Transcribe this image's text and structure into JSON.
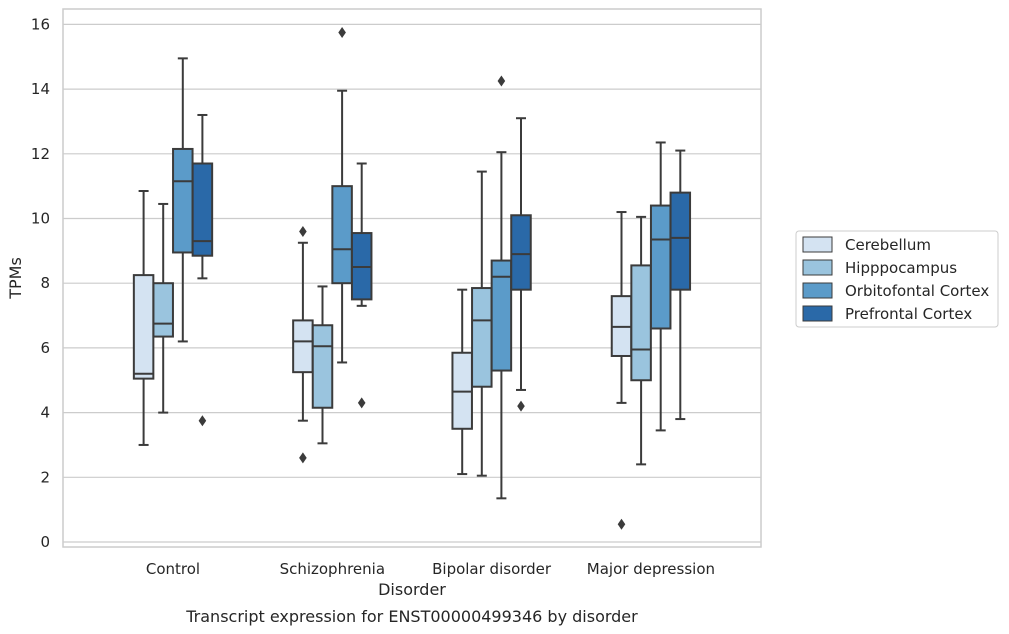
{
  "chart_data": {
    "type": "box",
    "caption": "Transcript expression for ENST00000499346 by disorder",
    "xlabel": "Disorder",
    "ylabel": "TPMs",
    "ylim": [
      -0.2,
      16.5
    ],
    "yticks": [
      0,
      2,
      4,
      6,
      8,
      10,
      12,
      14,
      16
    ],
    "grid": true,
    "legend_position": "right",
    "categories": [
      "Control",
      "Schizophrenia",
      "Bipolar disorder",
      "Major depression"
    ],
    "series": [
      {
        "name": "Cerebellum",
        "color": "#d4e3f2",
        "boxes": [
          {
            "whislo": 3.0,
            "q1": 5.05,
            "med": 5.2,
            "q3": 8.25,
            "whishi": 10.85,
            "fliers": []
          },
          {
            "whislo": 3.75,
            "q1": 5.25,
            "med": 6.2,
            "q3": 6.85,
            "whishi": 9.25,
            "fliers": [
              9.6,
              2.6
            ]
          },
          {
            "whislo": 2.1,
            "q1": 3.5,
            "med": 4.65,
            "q3": 5.85,
            "whishi": 7.8,
            "fliers": []
          },
          {
            "whislo": 4.3,
            "q1": 5.75,
            "med": 6.65,
            "q3": 7.6,
            "whishi": 10.2,
            "fliers": [
              0.55
            ]
          }
        ]
      },
      {
        "name": "Hipppocampus",
        "color": "#9ac4de",
        "boxes": [
          {
            "whislo": 4.0,
            "q1": 6.35,
            "med": 6.75,
            "q3": 8.0,
            "whishi": 10.45,
            "fliers": []
          },
          {
            "whislo": 3.05,
            "q1": 4.15,
            "med": 6.05,
            "q3": 6.7,
            "whishi": 7.9,
            "fliers": []
          },
          {
            "whislo": 2.05,
            "q1": 4.8,
            "med": 6.85,
            "q3": 7.85,
            "whishi": 11.45,
            "fliers": []
          },
          {
            "whislo": 2.4,
            "q1": 5.0,
            "med": 5.95,
            "q3": 8.55,
            "whishi": 10.05,
            "fliers": []
          }
        ]
      },
      {
        "name": "Orbitofontal Cortex",
        "color": "#5b9bc9",
        "boxes": [
          {
            "whislo": 6.2,
            "q1": 8.95,
            "med": 11.15,
            "q3": 12.15,
            "whishi": 14.95,
            "fliers": []
          },
          {
            "whislo": 5.55,
            "q1": 8.0,
            "med": 9.05,
            "q3": 11.0,
            "whishi": 13.95,
            "fliers": [
              15.75
            ]
          },
          {
            "whislo": 1.35,
            "q1": 5.3,
            "med": 8.2,
            "q3": 8.7,
            "whishi": 12.05,
            "fliers": [
              14.25
            ]
          },
          {
            "whislo": 3.45,
            "q1": 6.6,
            "med": 9.35,
            "q3": 10.4,
            "whishi": 12.35,
            "fliers": []
          }
        ]
      },
      {
        "name": "Prefrontal Cortex",
        "color": "#2a69a8",
        "boxes": [
          {
            "whislo": 8.15,
            "q1": 8.85,
            "med": 9.3,
            "q3": 11.7,
            "whishi": 13.2,
            "fliers": [
              3.75
            ]
          },
          {
            "whislo": 7.3,
            "q1": 7.5,
            "med": 8.5,
            "q3": 9.55,
            "whishi": 11.7,
            "fliers": [
              4.3
            ]
          },
          {
            "whislo": 4.7,
            "q1": 7.8,
            "med": 8.9,
            "q3": 10.1,
            "whishi": 13.1,
            "fliers": [
              4.2
            ]
          },
          {
            "whislo": 3.8,
            "q1": 7.8,
            "med": 9.4,
            "q3": 10.8,
            "whishi": 12.1,
            "fliers": []
          }
        ]
      }
    ]
  }
}
